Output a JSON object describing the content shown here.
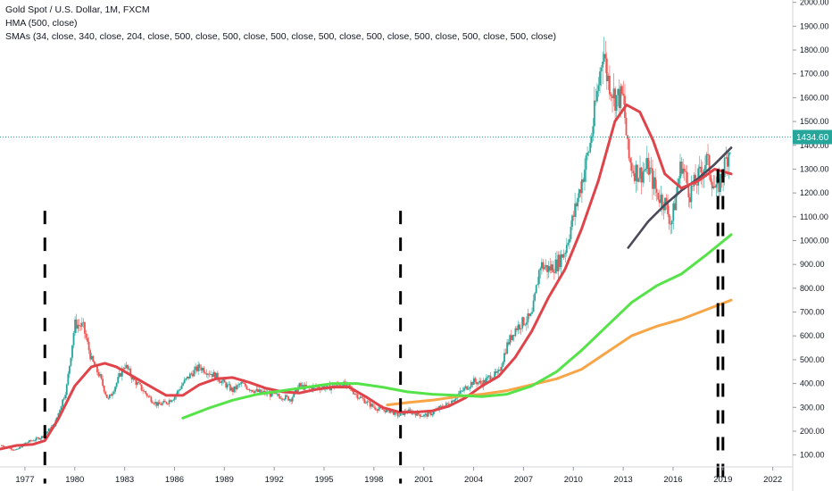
{
  "legend": {
    "title": "Gold Spot / U.S. Dollar, 1M, FXCM",
    "hma": "HMA (500, close)",
    "smas": "SMAs (34, close, 340, close, 204, close, 500, close, 500, close, 500, close, 500, close, 500, close, 500, close, 500, close, 500, close)"
  },
  "colors": {
    "up": "#26a69a",
    "down": "#ef5350",
    "hma": "#4a4a5a",
    "sma34": "#e0444b",
    "sma340": "#f7a546",
    "sma204": "#56e34a",
    "price_line": "#26a69a",
    "dashed": "#000000"
  },
  "chart_data": {
    "type": "candlestick",
    "ylim": [
      50,
      2010
    ],
    "xlim": [
      1975.5,
      2023.2
    ],
    "y_ticks": [
      "100.00",
      "200.00",
      "300.00",
      "400.00",
      "500.00",
      "600.00",
      "700.00",
      "800.00",
      "900.00",
      "1000.00",
      "1100.00",
      "1200.00",
      "1300.00",
      "1400.00",
      "1500.00",
      "1600.00",
      "1700.00",
      "1800.00",
      "1900.00",
      "2000.00"
    ],
    "x_ticks": [
      "1977",
      "1980",
      "1983",
      "1986",
      "1989",
      "1992",
      "1995",
      "1998",
      "2001",
      "2004",
      "2007",
      "2010",
      "2013",
      "2016",
      "2019",
      "2022"
    ],
    "last_price": "1434.60",
    "price_points": [
      [
        1975.6,
        140
      ],
      [
        1976.5,
        120
      ],
      [
        1977.0,
        150
      ],
      [
        1978.0,
        175
      ],
      [
        1978.8,
        230
      ],
      [
        1979.5,
        380
      ],
      [
        1980.0,
        650
      ],
      [
        1980.5,
        640
      ],
      [
        1981.0,
        500
      ],
      [
        1981.5,
        430
      ],
      [
        1982.0,
        330
      ],
      [
        1982.5,
        400
      ],
      [
        1983.0,
        480
      ],
      [
        1983.5,
        420
      ],
      [
        1984.0,
        380
      ],
      [
        1984.5,
        340
      ],
      [
        1985.0,
        310
      ],
      [
        1985.5,
        320
      ],
      [
        1986.0,
        345
      ],
      [
        1986.5,
        400
      ],
      [
        1987.0,
        440
      ],
      [
        1987.5,
        470
      ],
      [
        1988.0,
        450
      ],
      [
        1988.5,
        430
      ],
      [
        1989.0,
        400
      ],
      [
        1989.5,
        370
      ],
      [
        1990.0,
        400
      ],
      [
        1990.5,
        380
      ],
      [
        1991.0,
        365
      ],
      [
        1991.5,
        360
      ],
      [
        1992.0,
        350
      ],
      [
        1992.5,
        345
      ],
      [
        1993.0,
        335
      ],
      [
        1993.5,
        390
      ],
      [
        1994.0,
        380
      ],
      [
        1994.5,
        385
      ],
      [
        1995.0,
        385
      ],
      [
        1995.5,
        385
      ],
      [
        1996.0,
        400
      ],
      [
        1996.5,
        385
      ],
      [
        1997.0,
        350
      ],
      [
        1997.5,
        325
      ],
      [
        1998.0,
        300
      ],
      [
        1998.5,
        290
      ],
      [
        1999.0,
        285
      ],
      [
        1999.5,
        265
      ],
      [
        2000.0,
        285
      ],
      [
        2000.5,
        275
      ],
      [
        2001.0,
        265
      ],
      [
        2001.5,
        275
      ],
      [
        2002.0,
        300
      ],
      [
        2002.5,
        315
      ],
      [
        2003.0,
        350
      ],
      [
        2003.5,
        380
      ],
      [
        2004.0,
        410
      ],
      [
        2004.5,
        400
      ],
      [
        2005.0,
        430
      ],
      [
        2005.5,
        440
      ],
      [
        2006.0,
        560
      ],
      [
        2006.5,
        630
      ],
      [
        2007.0,
        660
      ],
      [
        2007.5,
        680
      ],
      [
        2008.0,
        900
      ],
      [
        2008.5,
        880
      ],
      [
        2009.0,
        900
      ],
      [
        2009.5,
        960
      ],
      [
        2010.0,
        1100
      ],
      [
        2010.5,
        1250
      ],
      [
        2011.0,
        1400
      ],
      [
        2011.5,
        1650
      ],
      [
        2011.8,
        1820
      ],
      [
        2012.0,
        1700
      ],
      [
        2012.5,
        1600
      ],
      [
        2013.0,
        1600
      ],
      [
        2013.3,
        1350
      ],
      [
        2013.6,
        1300
      ],
      [
        2014.0,
        1280
      ],
      [
        2014.5,
        1310
      ],
      [
        2015.0,
        1200
      ],
      [
        2015.5,
        1160
      ],
      [
        2015.9,
        1070
      ],
      [
        2016.5,
        1330
      ],
      [
        2017.0,
        1200
      ],
      [
        2017.5,
        1260
      ],
      [
        2018.0,
        1340
      ],
      [
        2018.6,
        1200
      ],
      [
        2019.0,
        1290
      ],
      [
        2019.5,
        1420
      ]
    ],
    "series": [
      {
        "name": "HMA (500, close)",
        "key": "hma",
        "points": [
          [
            2013.3,
            970
          ],
          [
            2014.5,
            1080
          ],
          [
            2015.5,
            1150
          ],
          [
            2016.5,
            1210
          ],
          [
            2017.5,
            1260
          ],
          [
            2018.5,
            1320
          ],
          [
            2019.5,
            1390
          ]
        ]
      },
      {
        "name": "SMA 34",
        "key": "sma34",
        "points": [
          [
            1975.5,
            125
          ],
          [
            1976.5,
            140
          ],
          [
            1977.5,
            145
          ],
          [
            1978.2,
            160
          ],
          [
            1979.0,
            250
          ],
          [
            1980.0,
            390
          ],
          [
            1981.0,
            470
          ],
          [
            1981.8,
            485
          ],
          [
            1982.5,
            470
          ],
          [
            1983.5,
            430
          ],
          [
            1984.5,
            390
          ],
          [
            1985.5,
            350
          ],
          [
            1986.5,
            350
          ],
          [
            1987.5,
            395
          ],
          [
            1988.5,
            420
          ],
          [
            1989.5,
            425
          ],
          [
            1990.5,
            405
          ],
          [
            1991.5,
            380
          ],
          [
            1992.5,
            365
          ],
          [
            1993.5,
            360
          ],
          [
            1994.5,
            375
          ],
          [
            1995.5,
            385
          ],
          [
            1996.5,
            385
          ],
          [
            1997.5,
            345
          ],
          [
            1998.5,
            300
          ],
          [
            1999.5,
            280
          ],
          [
            2000.5,
            280
          ],
          [
            2001.5,
            285
          ],
          [
            2002.5,
            305
          ],
          [
            2003.5,
            340
          ],
          [
            2004.5,
            390
          ],
          [
            2005.5,
            430
          ],
          [
            2006.5,
            510
          ],
          [
            2007.5,
            620
          ],
          [
            2008.5,
            760
          ],
          [
            2009.5,
            880
          ],
          [
            2010.5,
            1050
          ],
          [
            2011.5,
            1250
          ],
          [
            2012.5,
            1500
          ],
          [
            2013.2,
            1570
          ],
          [
            2014.0,
            1540
          ],
          [
            2014.8,
            1420
          ],
          [
            2015.5,
            1280
          ],
          [
            2016.5,
            1220
          ],
          [
            2017.5,
            1250
          ],
          [
            2018.5,
            1300
          ],
          [
            2019.0,
            1290
          ],
          [
            2019.5,
            1280
          ]
        ]
      },
      {
        "name": "SMA 340",
        "key": "sma340",
        "points": [
          [
            1998.8,
            310
          ],
          [
            2000.0,
            320
          ],
          [
            2001.5,
            330
          ],
          [
            2003.0,
            345
          ],
          [
            2004.5,
            355
          ],
          [
            2006.0,
            370
          ],
          [
            2007.5,
            395
          ],
          [
            2009.0,
            420
          ],
          [
            2010.5,
            460
          ],
          [
            2012.0,
            530
          ],
          [
            2013.5,
            600
          ],
          [
            2015.0,
            640
          ],
          [
            2016.5,
            670
          ],
          [
            2018.0,
            710
          ],
          [
            2019.5,
            750
          ]
        ]
      },
      {
        "name": "SMA 204",
        "key": "sma204",
        "points": [
          [
            1986.5,
            255
          ],
          [
            1988.0,
            295
          ],
          [
            1989.5,
            330
          ],
          [
            1991.0,
            355
          ],
          [
            1992.5,
            370
          ],
          [
            1994.0,
            385
          ],
          [
            1995.5,
            400
          ],
          [
            1997.0,
            400
          ],
          [
            1998.5,
            385
          ],
          [
            2000.0,
            365
          ],
          [
            2001.5,
            355
          ],
          [
            2003.0,
            350
          ],
          [
            2004.5,
            345
          ],
          [
            2006.0,
            355
          ],
          [
            2007.5,
            390
          ],
          [
            2009.0,
            450
          ],
          [
            2010.5,
            540
          ],
          [
            2012.0,
            640
          ],
          [
            2013.5,
            740
          ],
          [
            2015.0,
            810
          ],
          [
            2016.5,
            860
          ],
          [
            2018.0,
            940
          ],
          [
            2019.5,
            1025
          ]
        ]
      }
    ],
    "dashed_lines": [
      {
        "x": 1978.2,
        "y1": 1125,
        "y2": -20
      },
      {
        "x": 1999.6,
        "y1": 1125,
        "y2": -20
      },
      {
        "x": 2018.7,
        "y1": 1300,
        "y2": -20
      },
      {
        "x": 2019.0,
        "y1": 1300,
        "y2": -20
      }
    ]
  }
}
